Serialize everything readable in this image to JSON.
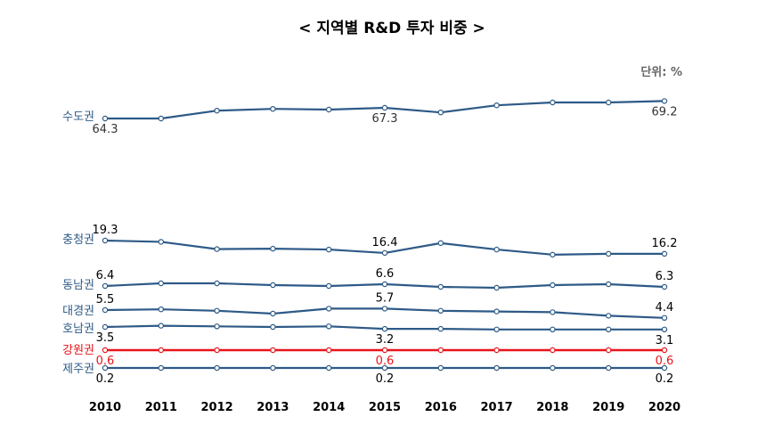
{
  "chart_data": {
    "type": "line",
    "title": "< 지역별 R&D 투자 비중 >",
    "unit": "단위: %",
    "x": [
      "2010",
      "2011",
      "2012",
      "2013",
      "2014",
      "2015",
      "2016",
      "2017",
      "2018",
      "2019",
      "2020"
    ],
    "series": [
      {
        "name": "수도권",
        "color": "#2e5a87",
        "values": [
          64.3,
          64.3,
          66.5,
          67.0,
          66.8,
          67.3,
          66.0,
          68.0,
          68.8,
          68.8,
          69.2
        ],
        "labels": [
          {
            "i": 0,
            "text": "64.3",
            "pos": "below"
          },
          {
            "i": 5,
            "text": "67.3",
            "pos": "below"
          },
          {
            "i": 10,
            "text": "69.2",
            "pos": "below"
          }
        ]
      },
      {
        "name": "충청권",
        "color": "#2e5a87",
        "values": [
          19.3,
          19.0,
          17.3,
          17.4,
          17.2,
          16.4,
          18.7,
          17.2,
          16.0,
          16.2,
          16.2
        ],
        "labels": [
          {
            "i": 0,
            "text": "19.3",
            "pos": "above"
          },
          {
            "i": 5,
            "text": "16.4",
            "pos": "above"
          },
          {
            "i": 10,
            "text": "16.2",
            "pos": "above"
          }
        ]
      },
      {
        "name": "동남권",
        "color": "#2e5a87",
        "values": [
          6.4,
          6.7,
          6.7,
          6.5,
          6.4,
          6.6,
          6.3,
          6.2,
          6.5,
          6.6,
          6.3
        ],
        "labels": [
          {
            "i": 0,
            "text": "6.4",
            "pos": "above"
          },
          {
            "i": 5,
            "text": "6.6",
            "pos": "above"
          },
          {
            "i": 10,
            "text": "6.3",
            "pos": "above"
          }
        ]
      },
      {
        "name": "대경권",
        "color": "#2e5a87",
        "values": [
          5.5,
          5.6,
          5.4,
          5.0,
          5.7,
          5.7,
          5.4,
          5.3,
          5.2,
          4.7,
          4.4
        ],
        "labels": [
          {
            "i": 0,
            "text": "5.5",
            "pos": "above"
          },
          {
            "i": 5,
            "text": "5.7",
            "pos": "above"
          },
          {
            "i": 10,
            "text": "4.4",
            "pos": "above"
          }
        ]
      },
      {
        "name": "호남권",
        "color": "#2e5a87",
        "values": [
          3.5,
          3.7,
          3.6,
          3.5,
          3.6,
          3.2,
          3.2,
          3.1,
          3.1,
          3.1,
          3.1
        ],
        "labels": [
          {
            "i": 0,
            "text": "3.5",
            "pos": "below"
          },
          {
            "i": 5,
            "text": "3.2",
            "pos": "below"
          },
          {
            "i": 10,
            "text": "3.1",
            "pos": "below"
          }
        ]
      },
      {
        "name": "강원권",
        "color": "#e8141b",
        "values": [
          0.6,
          0.6,
          0.6,
          0.6,
          0.6,
          0.6,
          0.6,
          0.6,
          0.6,
          0.6,
          0.6
        ],
        "labels": [
          {
            "i": 0,
            "text": "0.6",
            "pos": "below"
          },
          {
            "i": 5,
            "text": "0.6",
            "pos": "below"
          },
          {
            "i": 10,
            "text": "0.6",
            "pos": "below"
          }
        ]
      },
      {
        "name": "제주권",
        "color": "#2e5a87",
        "values": [
          0.2,
          0.2,
          0.2,
          0.2,
          0.2,
          0.2,
          0.2,
          0.2,
          0.2,
          0.2,
          0.2
        ],
        "labels": [
          {
            "i": 0,
            "text": "0.2",
            "pos": "below"
          },
          {
            "i": 5,
            "text": "0.2",
            "pos": "below"
          },
          {
            "i": 10,
            "text": "0.2",
            "pos": "below"
          }
        ]
      }
    ]
  }
}
